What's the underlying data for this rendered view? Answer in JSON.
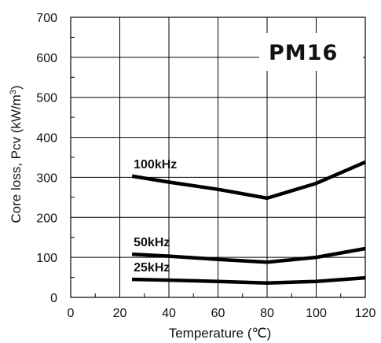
{
  "chart_data": {
    "type": "line",
    "title": "PM16",
    "xlabel": "Temperature (℃)",
    "ylabel_text": "Core loss, Pcv (kW/m",
    "ylabel_sup": "3",
    "ylabel_close": ")",
    "xlim": [
      0,
      120
    ],
    "ylim": [
      0,
      700
    ],
    "xticks": [
      0,
      20,
      40,
      60,
      80,
      100,
      120
    ],
    "yticks": [
      0,
      100,
      200,
      300,
      400,
      500,
      600,
      700
    ],
    "grid": true,
    "series": [
      {
        "name": "100kHz",
        "x": [
          25,
          40,
          60,
          80,
          100,
          120
        ],
        "y": [
          303,
          288,
          270,
          248,
          285,
          338
        ]
      },
      {
        "name": "50kHz",
        "x": [
          25,
          40,
          60,
          80,
          100,
          120
        ],
        "y": [
          108,
          103,
          95,
          88,
          100,
          122
        ]
      },
      {
        "name": "25kHz",
        "x": [
          25,
          40,
          60,
          80,
          100,
          120
        ],
        "y": [
          45,
          43,
          40,
          36,
          40,
          49
        ]
      }
    ],
    "line_color": "#000000"
  }
}
